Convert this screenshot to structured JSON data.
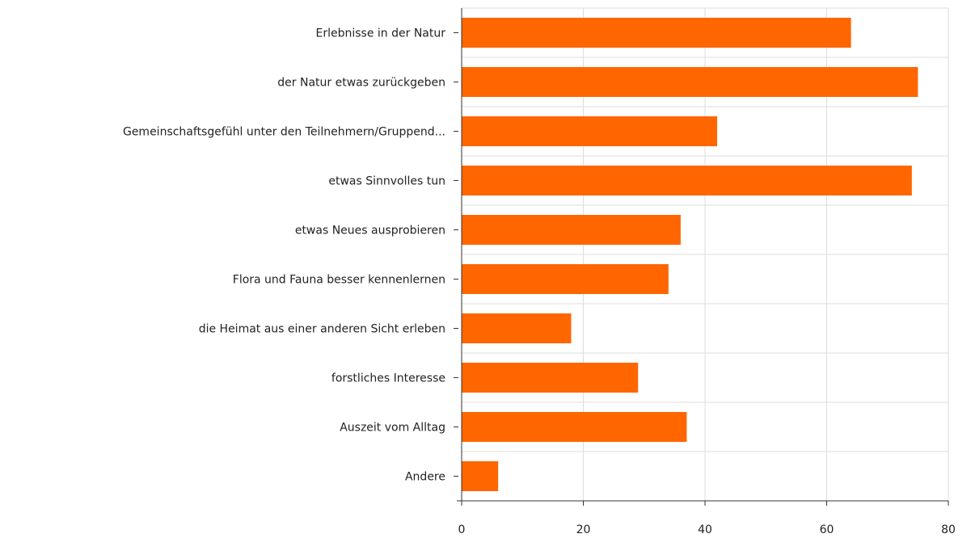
{
  "chart_data": {
    "type": "bar",
    "orientation": "horizontal",
    "categories": [
      "Erlebnisse in der Natur",
      "der Natur etwas zurückgeben",
      "Gemeinschaftsgefühl unter den Teilnehmern/Gruppend...",
      "etwas Sinnvolles tun",
      "etwas Neues ausprobieren",
      "Flora und Fauna besser kennenlernen",
      "die Heimat aus einer anderen Sicht erleben",
      "forstliches Interesse",
      "Auszeit vom Alltag",
      "Andere"
    ],
    "values": [
      64,
      75,
      42,
      74,
      36,
      34,
      18,
      29,
      37,
      6
    ],
    "xlim": [
      0,
      80
    ],
    "xticks": [
      0,
      20,
      40,
      60,
      80
    ],
    "grid": true,
    "title": "",
    "xlabel": "",
    "ylabel": "",
    "colors": {
      "bar": "#ff6600",
      "grid": "#dddddd",
      "axis": "#333333",
      "text": "#222222"
    }
  }
}
